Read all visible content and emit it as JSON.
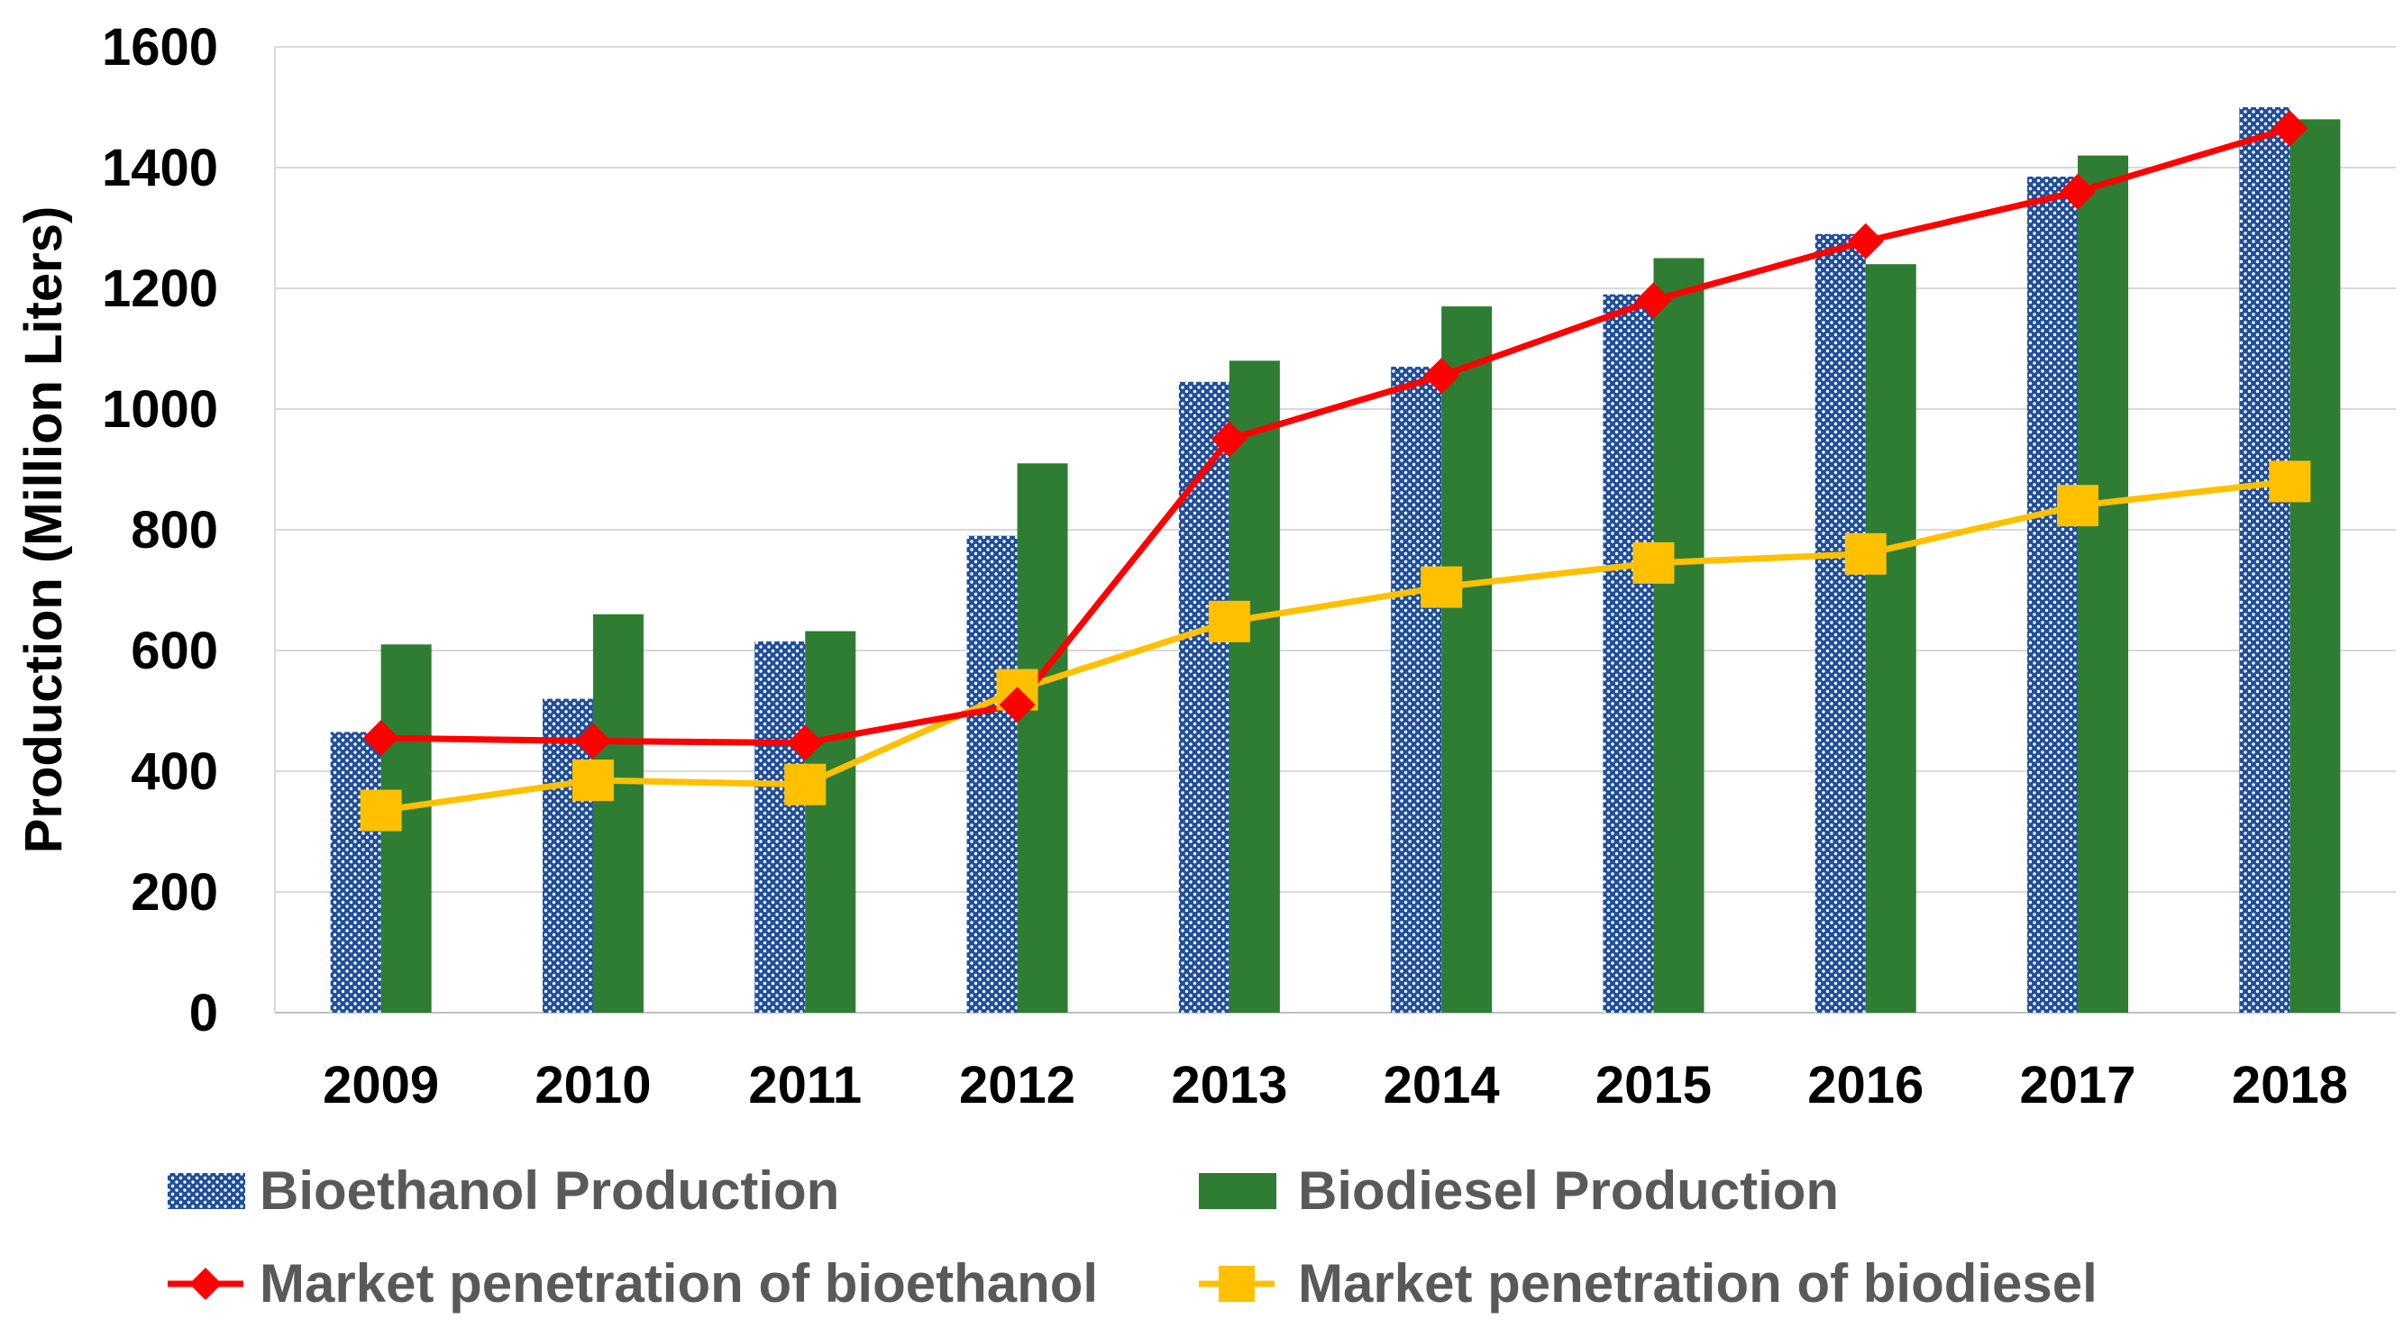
{
  "chart_data": {
    "type": "bar",
    "title": "",
    "xlabel": "",
    "ylabel": "Production (Million Liters)",
    "ylim": [
      0,
      1600
    ],
    "yticks": [
      "0",
      "200",
      "400",
      "600",
      "800",
      "1000",
      "1200",
      "1400",
      "1600"
    ],
    "categories": [
      "2009",
      "2010",
      "2011",
      "2012",
      "2013",
      "2014",
      "2015",
      "2016",
      "2017",
      "2018"
    ],
    "grid": true,
    "legend_position": "bottom",
    "bar_series": [
      {
        "name": "Bioethanol Production",
        "color": "#1F4E9C",
        "pattern": "dotted",
        "values": [
          465,
          520,
          615,
          790,
          1045,
          1070,
          1190,
          1290,
          1385,
          1500
        ]
      },
      {
        "name": "Biodiesel Production",
        "color": "#2E7D32",
        "values": [
          610,
          660,
          632,
          910,
          1080,
          1170,
          1250,
          1240,
          1420,
          1480
        ]
      }
    ],
    "line_series": [
      {
        "name": "Market penetration of bioethanol",
        "color": "#FF0000",
        "marker": "diamond",
        "values": [
          455,
          450,
          447,
          510,
          950,
          1055,
          1180,
          1278,
          1360,
          1465
        ]
      },
      {
        "name": "Market penetration of biodiesel",
        "color": "#FFC000",
        "marker": "square",
        "values": [
          335,
          385,
          378,
          535,
          648,
          705,
          745,
          760,
          840,
          880
        ]
      }
    ]
  }
}
